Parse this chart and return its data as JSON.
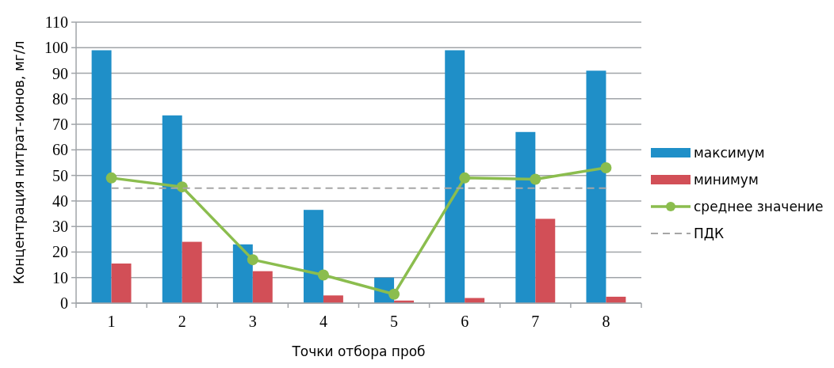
{
  "chart_data": {
    "type": "bar",
    "xlabel": "Точки отбора проб",
    "ylabel": "Концентрация нитрат-ионов, мг/л",
    "categories": [
      "1",
      "2",
      "3",
      "4",
      "5",
      "6",
      "7",
      "8"
    ],
    "series": [
      {
        "name": "максимум",
        "color": "#1f8fc8",
        "values": [
          99,
          73.5,
          23,
          36.5,
          10,
          99,
          67,
          91
        ]
      },
      {
        "name": "минимум",
        "color": "#d24f57",
        "values": [
          15.5,
          24,
          12.5,
          3,
          1,
          2,
          33,
          2.5
        ]
      },
      {
        "name": "среднее значение",
        "type": "line",
        "color": "#8bbd4e",
        "marker": "circle",
        "line_style": "solid",
        "values": [
          49,
          45.5,
          17,
          11,
          3.5,
          49,
          48.5,
          53
        ]
      },
      {
        "name": "ПДК",
        "type": "line",
        "color": "#a6a6a6",
        "marker": "none",
        "line_style": "dashed",
        "values": [
          45,
          45,
          45,
          45,
          45,
          45,
          45,
          45
        ]
      }
    ],
    "ylim": [
      0,
      110
    ],
    "yticks": [
      0,
      10,
      20,
      30,
      40,
      50,
      60,
      70,
      80,
      90,
      100,
      110
    ],
    "grid": "y",
    "legend": "right"
  }
}
